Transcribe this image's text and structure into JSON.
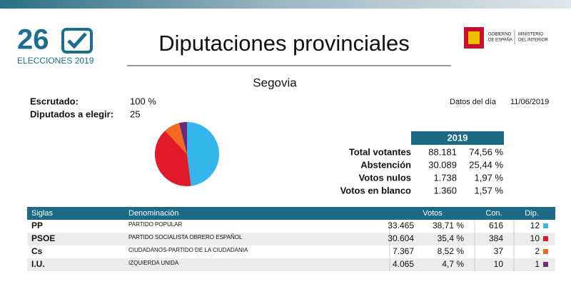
{
  "header": {
    "logo_number": "26",
    "logo_caption": "ELECCIONES 2019",
    "title": "Diputaciones provinciales",
    "gov_name": [
      "GOBIERNO",
      "DE ESPAÑA"
    ],
    "ministry_name": [
      "MINISTERIO",
      "DEL INTERIOR"
    ]
  },
  "region": "Segovia",
  "status": {
    "counted_label": "Escrutado:",
    "counted_value": "100 %",
    "seats_label": "Diputados a elegir:",
    "seats_value": "25",
    "date_label": "Datos del día",
    "date_value": "11/06/2019"
  },
  "summary": {
    "year": "2019",
    "rows": [
      {
        "label": "Total votantes",
        "count": "88.181",
        "percent": "74,56 %"
      },
      {
        "label": "Abstención",
        "count": "30.089",
        "percent": "25,44 %"
      },
      {
        "label": "Votos nulos",
        "count": "1.738",
        "percent": "1,97 %"
      },
      {
        "label": "Votos en blanco",
        "count": "1.360",
        "percent": "1,57 %"
      }
    ]
  },
  "table": {
    "headers": [
      "Siglas",
      "Denominación",
      "Votos",
      "Con.",
      "Dip."
    ],
    "rows": [
      {
        "party": "PP",
        "name": "PARTIDO POPULAR",
        "votes": "33.465",
        "percent": "38,71 %",
        "councillors": 616,
        "seats": 12,
        "color": "#35b6ea"
      },
      {
        "party": "PSOE",
        "name": "PARTIDO SOCIALISTA OBRERO ESPAÑOL",
        "votes": "30.604",
        "percent": "35,4 %",
        "councillors": 384,
        "seats": 10,
        "color": "#e2192a"
      },
      {
        "party": "Cs",
        "name": "CIUDADANOS-PARTIDO DE LA CIUDADANIA",
        "votes": "7.367",
        "percent": "8,52 %",
        "councillors": 37,
        "seats": 2,
        "color": "#f26a21"
      },
      {
        "party": "I.U.",
        "name": "IZQUIERDA UNIDA",
        "votes": "4.065",
        "percent": "4,7 %",
        "councillors": 10,
        "seats": 1,
        "color": "#6a2c7a"
      }
    ]
  }
}
